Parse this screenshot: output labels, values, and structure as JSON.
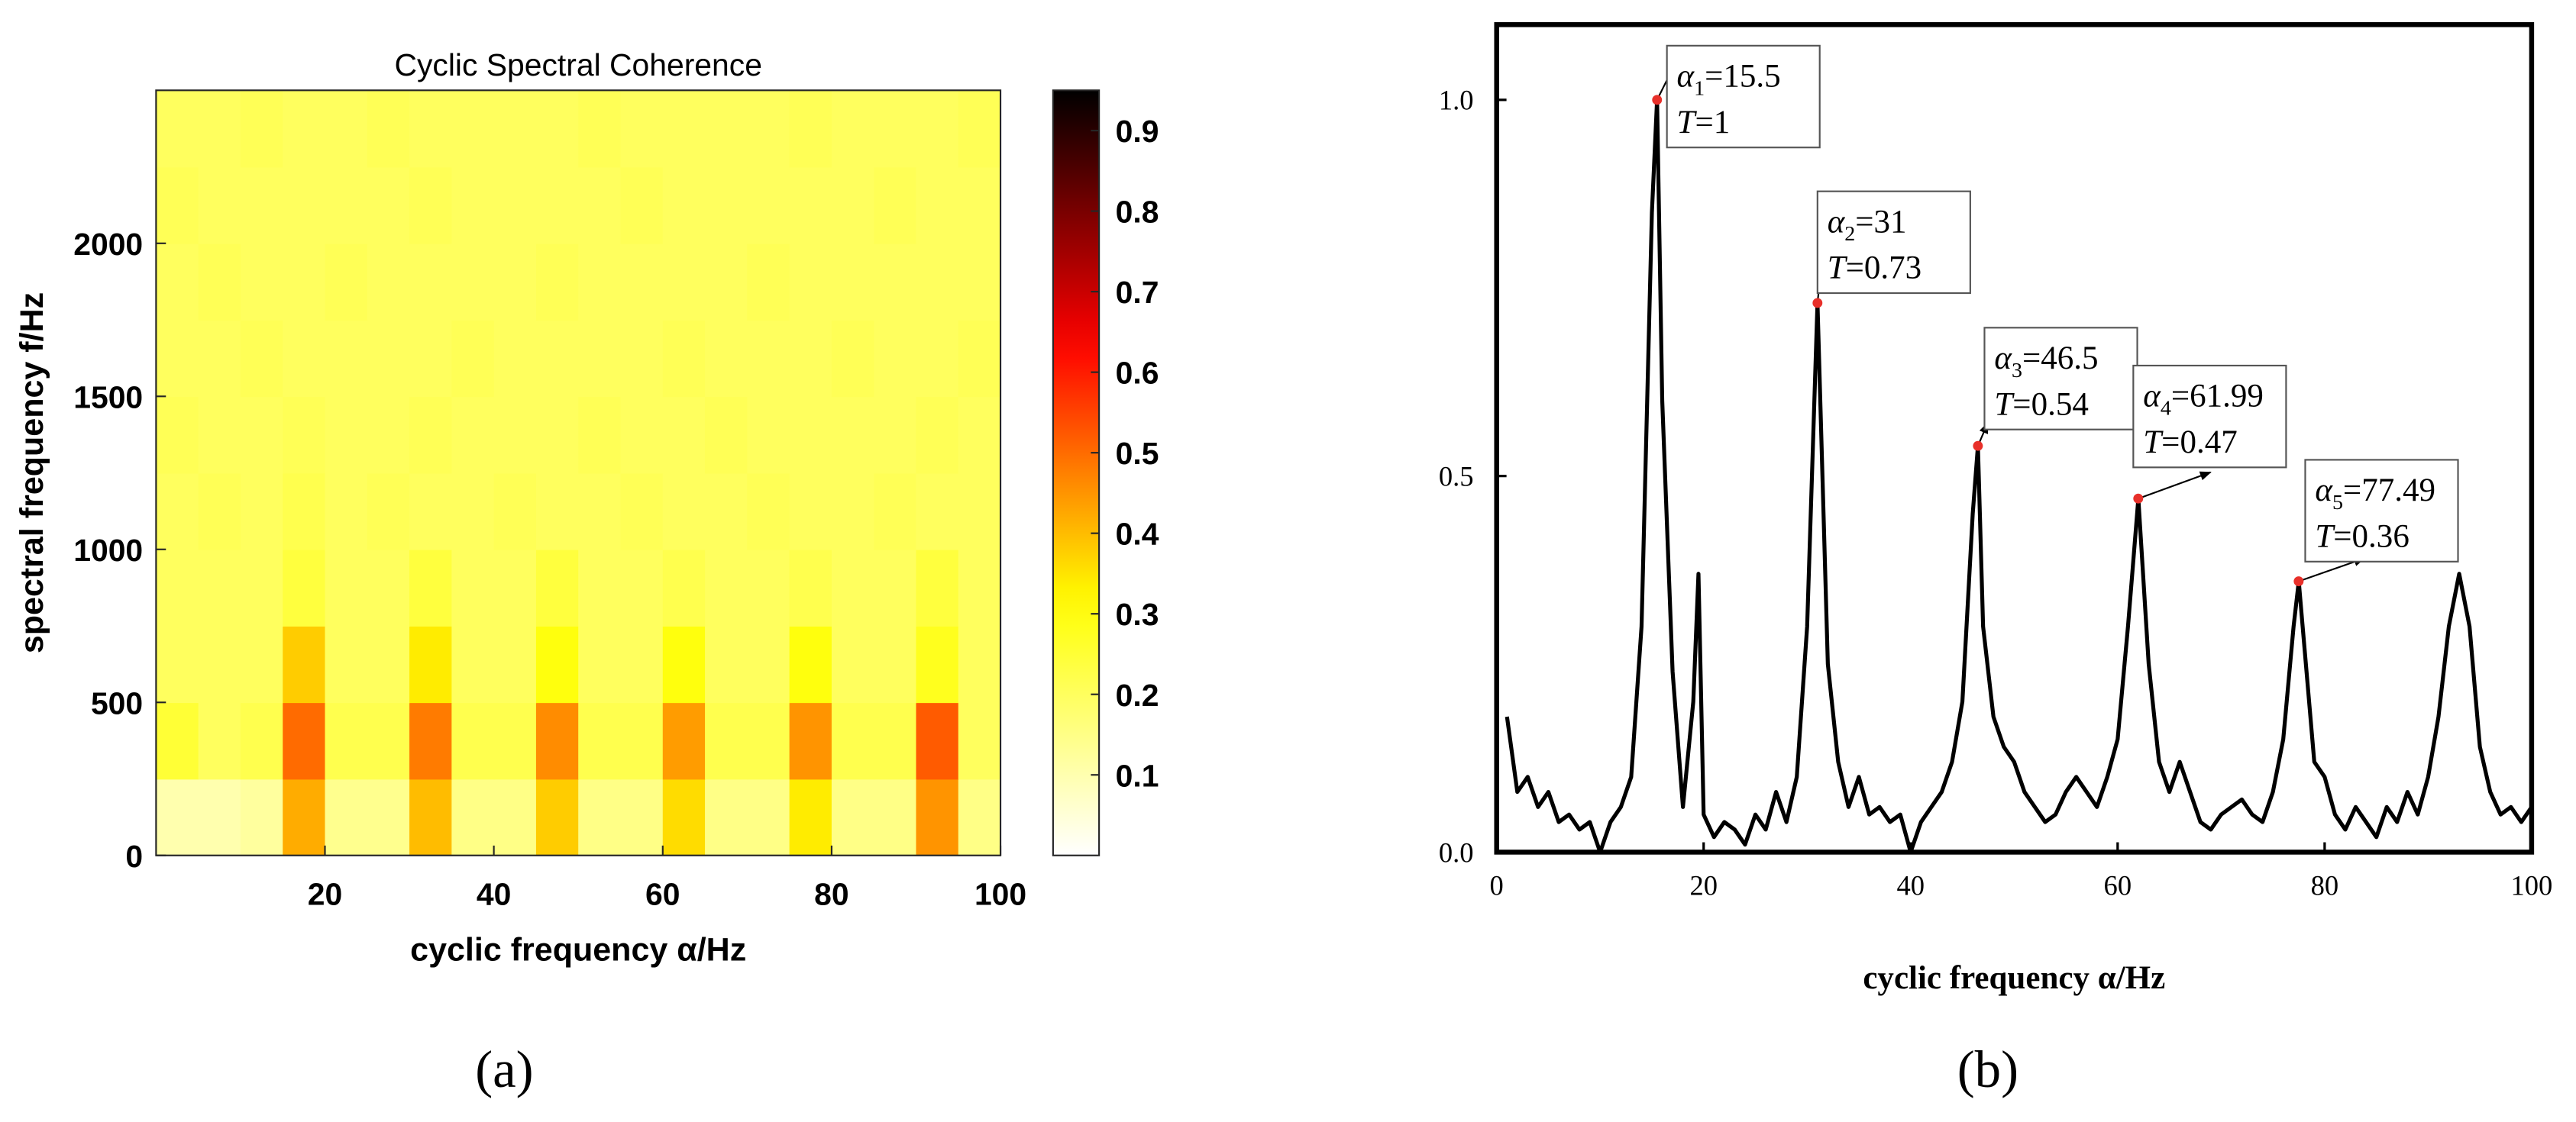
{
  "chart_data": [
    {
      "type": "heatmap",
      "title": "Cyclic Spectral Coherence",
      "xlabel": "cyclic frequency α/Hz",
      "ylabel": "spectral frequency f/Hz",
      "xlim": [
        0,
        100
      ],
      "xticks": [
        20,
        40,
        60,
        80,
        100
      ],
      "ylim": [
        0,
        2500
      ],
      "yticks": [
        0,
        500,
        1000,
        1500,
        2000
      ],
      "clim": [
        0,
        0.95
      ],
      "cticks": [
        0.1,
        0.2,
        0.3,
        0.4,
        0.5,
        0.6,
        0.7,
        0.8,
        0.9
      ],
      "colormap": "hot-reversed",
      "x": [
        2.5,
        7.5,
        12.5,
        17.5,
        22.5,
        27.5,
        32.5,
        37.5,
        42.5,
        47.5,
        52.5,
        57.5,
        62.5,
        67.5,
        72.5,
        77.5,
        82.5,
        87.5,
        92.5,
        97.5
      ],
      "y": [
        125,
        375,
        625,
        875,
        1125,
        1375,
        1625,
        1875,
        2125,
        2375
      ],
      "z": [
        [
          0.1,
          0.1,
          0.12,
          0.42,
          0.14,
          0.14,
          0.4,
          0.15,
          0.15,
          0.38,
          0.15,
          0.15,
          0.36,
          0.15,
          0.15,
          0.34,
          0.15,
          0.15,
          0.45,
          0.15
        ],
        [
          0.25,
          0.2,
          0.22,
          0.5,
          0.22,
          0.22,
          0.48,
          0.22,
          0.22,
          0.46,
          0.22,
          0.22,
          0.44,
          0.22,
          0.22,
          0.45,
          0.22,
          0.22,
          0.52,
          0.2
        ],
        [
          0.2,
          0.2,
          0.2,
          0.38,
          0.2,
          0.2,
          0.34,
          0.2,
          0.2,
          0.3,
          0.2,
          0.2,
          0.3,
          0.2,
          0.2,
          0.3,
          0.2,
          0.2,
          0.28,
          0.2
        ],
        [
          0.2,
          0.2,
          0.2,
          0.24,
          0.2,
          0.2,
          0.24,
          0.2,
          0.2,
          0.24,
          0.2,
          0.2,
          0.22,
          0.2,
          0.2,
          0.22,
          0.2,
          0.2,
          0.24,
          0.2
        ],
        [
          0.2,
          0.21,
          0.2,
          0.22,
          0.2,
          0.21,
          0.2,
          0.2,
          0.21,
          0.2,
          0.2,
          0.21,
          0.2,
          0.2,
          0.21,
          0.2,
          0.2,
          0.21,
          0.2,
          0.2
        ],
        [
          0.21,
          0.2,
          0.2,
          0.21,
          0.2,
          0.2,
          0.21,
          0.2,
          0.2,
          0.2,
          0.21,
          0.2,
          0.2,
          0.21,
          0.2,
          0.2,
          0.2,
          0.2,
          0.21,
          0.2
        ],
        [
          0.2,
          0.2,
          0.21,
          0.2,
          0.2,
          0.2,
          0.2,
          0.21,
          0.2,
          0.2,
          0.2,
          0.2,
          0.21,
          0.2,
          0.2,
          0.2,
          0.21,
          0.2,
          0.2,
          0.21
        ],
        [
          0.2,
          0.21,
          0.2,
          0.2,
          0.21,
          0.2,
          0.2,
          0.2,
          0.2,
          0.21,
          0.2,
          0.2,
          0.2,
          0.2,
          0.21,
          0.2,
          0.2,
          0.2,
          0.2,
          0.2
        ],
        [
          0.21,
          0.2,
          0.2,
          0.2,
          0.2,
          0.2,
          0.21,
          0.2,
          0.2,
          0.2,
          0.2,
          0.21,
          0.2,
          0.2,
          0.2,
          0.2,
          0.2,
          0.21,
          0.2,
          0.2
        ],
        [
          0.2,
          0.2,
          0.21,
          0.2,
          0.2,
          0.21,
          0.2,
          0.2,
          0.2,
          0.2,
          0.21,
          0.2,
          0.2,
          0.2,
          0.2,
          0.21,
          0.2,
          0.2,
          0.2,
          0.21
        ]
      ]
    },
    {
      "type": "line",
      "xlabel": "cyclic frequency α/Hz",
      "xlim": [
        0,
        100
      ],
      "xticks": [
        0,
        20,
        40,
        60,
        80,
        100
      ],
      "ylim": [
        0,
        1.1
      ],
      "yticks": [
        {
          "value": 0,
          "label": "0.0"
        },
        {
          "value": 0.5,
          "label": "0.5"
        },
        {
          "value": 1,
          "label": "1.0"
        }
      ],
      "color": "#000000",
      "marker_color": "#e8302a",
      "x": [
        1,
        2,
        3,
        4,
        5,
        6,
        7,
        8,
        9,
        10,
        11,
        12,
        13,
        14,
        15,
        15.5,
        16,
        17,
        18,
        19,
        19.5,
        20,
        21,
        22,
        23,
        24,
        25,
        26,
        27,
        28,
        29,
        30,
        31,
        32,
        33,
        34,
        35,
        36,
        37,
        38,
        39,
        40,
        41,
        42,
        43,
        44,
        45,
        46,
        46.5,
        47,
        48,
        49,
        50,
        51,
        52,
        53,
        54,
        55,
        56,
        57,
        58,
        59,
        60,
        61,
        62,
        63,
        64,
        65,
        66,
        67,
        68,
        69,
        70,
        71,
        72,
        73,
        74,
        75,
        76,
        77,
        77.5,
        78,
        79,
        80,
        81,
        82,
        83,
        84,
        85,
        86,
        87,
        88,
        89,
        90,
        91,
        92,
        93,
        94,
        95,
        96,
        97,
        98,
        99,
        100
      ],
      "values": [
        0.18,
        0.08,
        0.1,
        0.06,
        0.08,
        0.04,
        0.05,
        0.03,
        0.04,
        0,
        0.04,
        0.06,
        0.1,
        0.3,
        0.85,
        1,
        0.6,
        0.24,
        0.06,
        0.2,
        0.37,
        0.05,
        0.02,
        0.04,
        0.03,
        0.01,
        0.05,
        0.03,
        0.08,
        0.04,
        0.1,
        0.3,
        0.73,
        0.25,
        0.12,
        0.06,
        0.1,
        0.05,
        0.06,
        0.04,
        0.05,
        0,
        0.04,
        0.06,
        0.08,
        0.12,
        0.2,
        0.45,
        0.54,
        0.3,
        0.18,
        0.14,
        0.12,
        0.08,
        0.06,
        0.04,
        0.05,
        0.08,
        0.1,
        0.08,
        0.06,
        0.1,
        0.15,
        0.3,
        0.47,
        0.25,
        0.12,
        0.08,
        0.12,
        0.08,
        0.04,
        0.03,
        0.05,
        0.06,
        0.07,
        0.05,
        0.04,
        0.08,
        0.15,
        0.3,
        0.36,
        0.28,
        0.12,
        0.1,
        0.05,
        0.03,
        0.06,
        0.04,
        0.02,
        0.06,
        0.04,
        0.08,
        0.05,
        0.1,
        0.18,
        0.3,
        0.37,
        0.3,
        0.14,
        0.08,
        0.05,
        0.06,
        0.04,
        0.06
      ],
      "annotations": [
        {
          "x": 15.5,
          "y": 1,
          "symbol": "α",
          "index": "1",
          "text": "=15.5",
          "t_symbol": "T",
          "t_text": "=1"
        },
        {
          "x": 31,
          "y": 0.73,
          "symbol": "α",
          "index": "2",
          "text": "=31",
          "t_symbol": "T",
          "t_text": "=0.73"
        },
        {
          "x": 46.5,
          "y": 0.54,
          "symbol": "α",
          "index": "3",
          "text": "=46.5",
          "t_symbol": "T",
          "t_text": "=0.54"
        },
        {
          "x": 61.99,
          "y": 0.47,
          "symbol": "α",
          "index": "4",
          "text": "=61.99",
          "t_symbol": "T",
          "t_text": "=0.47"
        },
        {
          "x": 77.49,
          "y": 0.36,
          "symbol": "α",
          "index": "5",
          "text": "=77.49",
          "t_symbol": "T",
          "t_text": "=0.36"
        }
      ]
    }
  ],
  "panel_labels": [
    "(a)",
    "(b)"
  ]
}
